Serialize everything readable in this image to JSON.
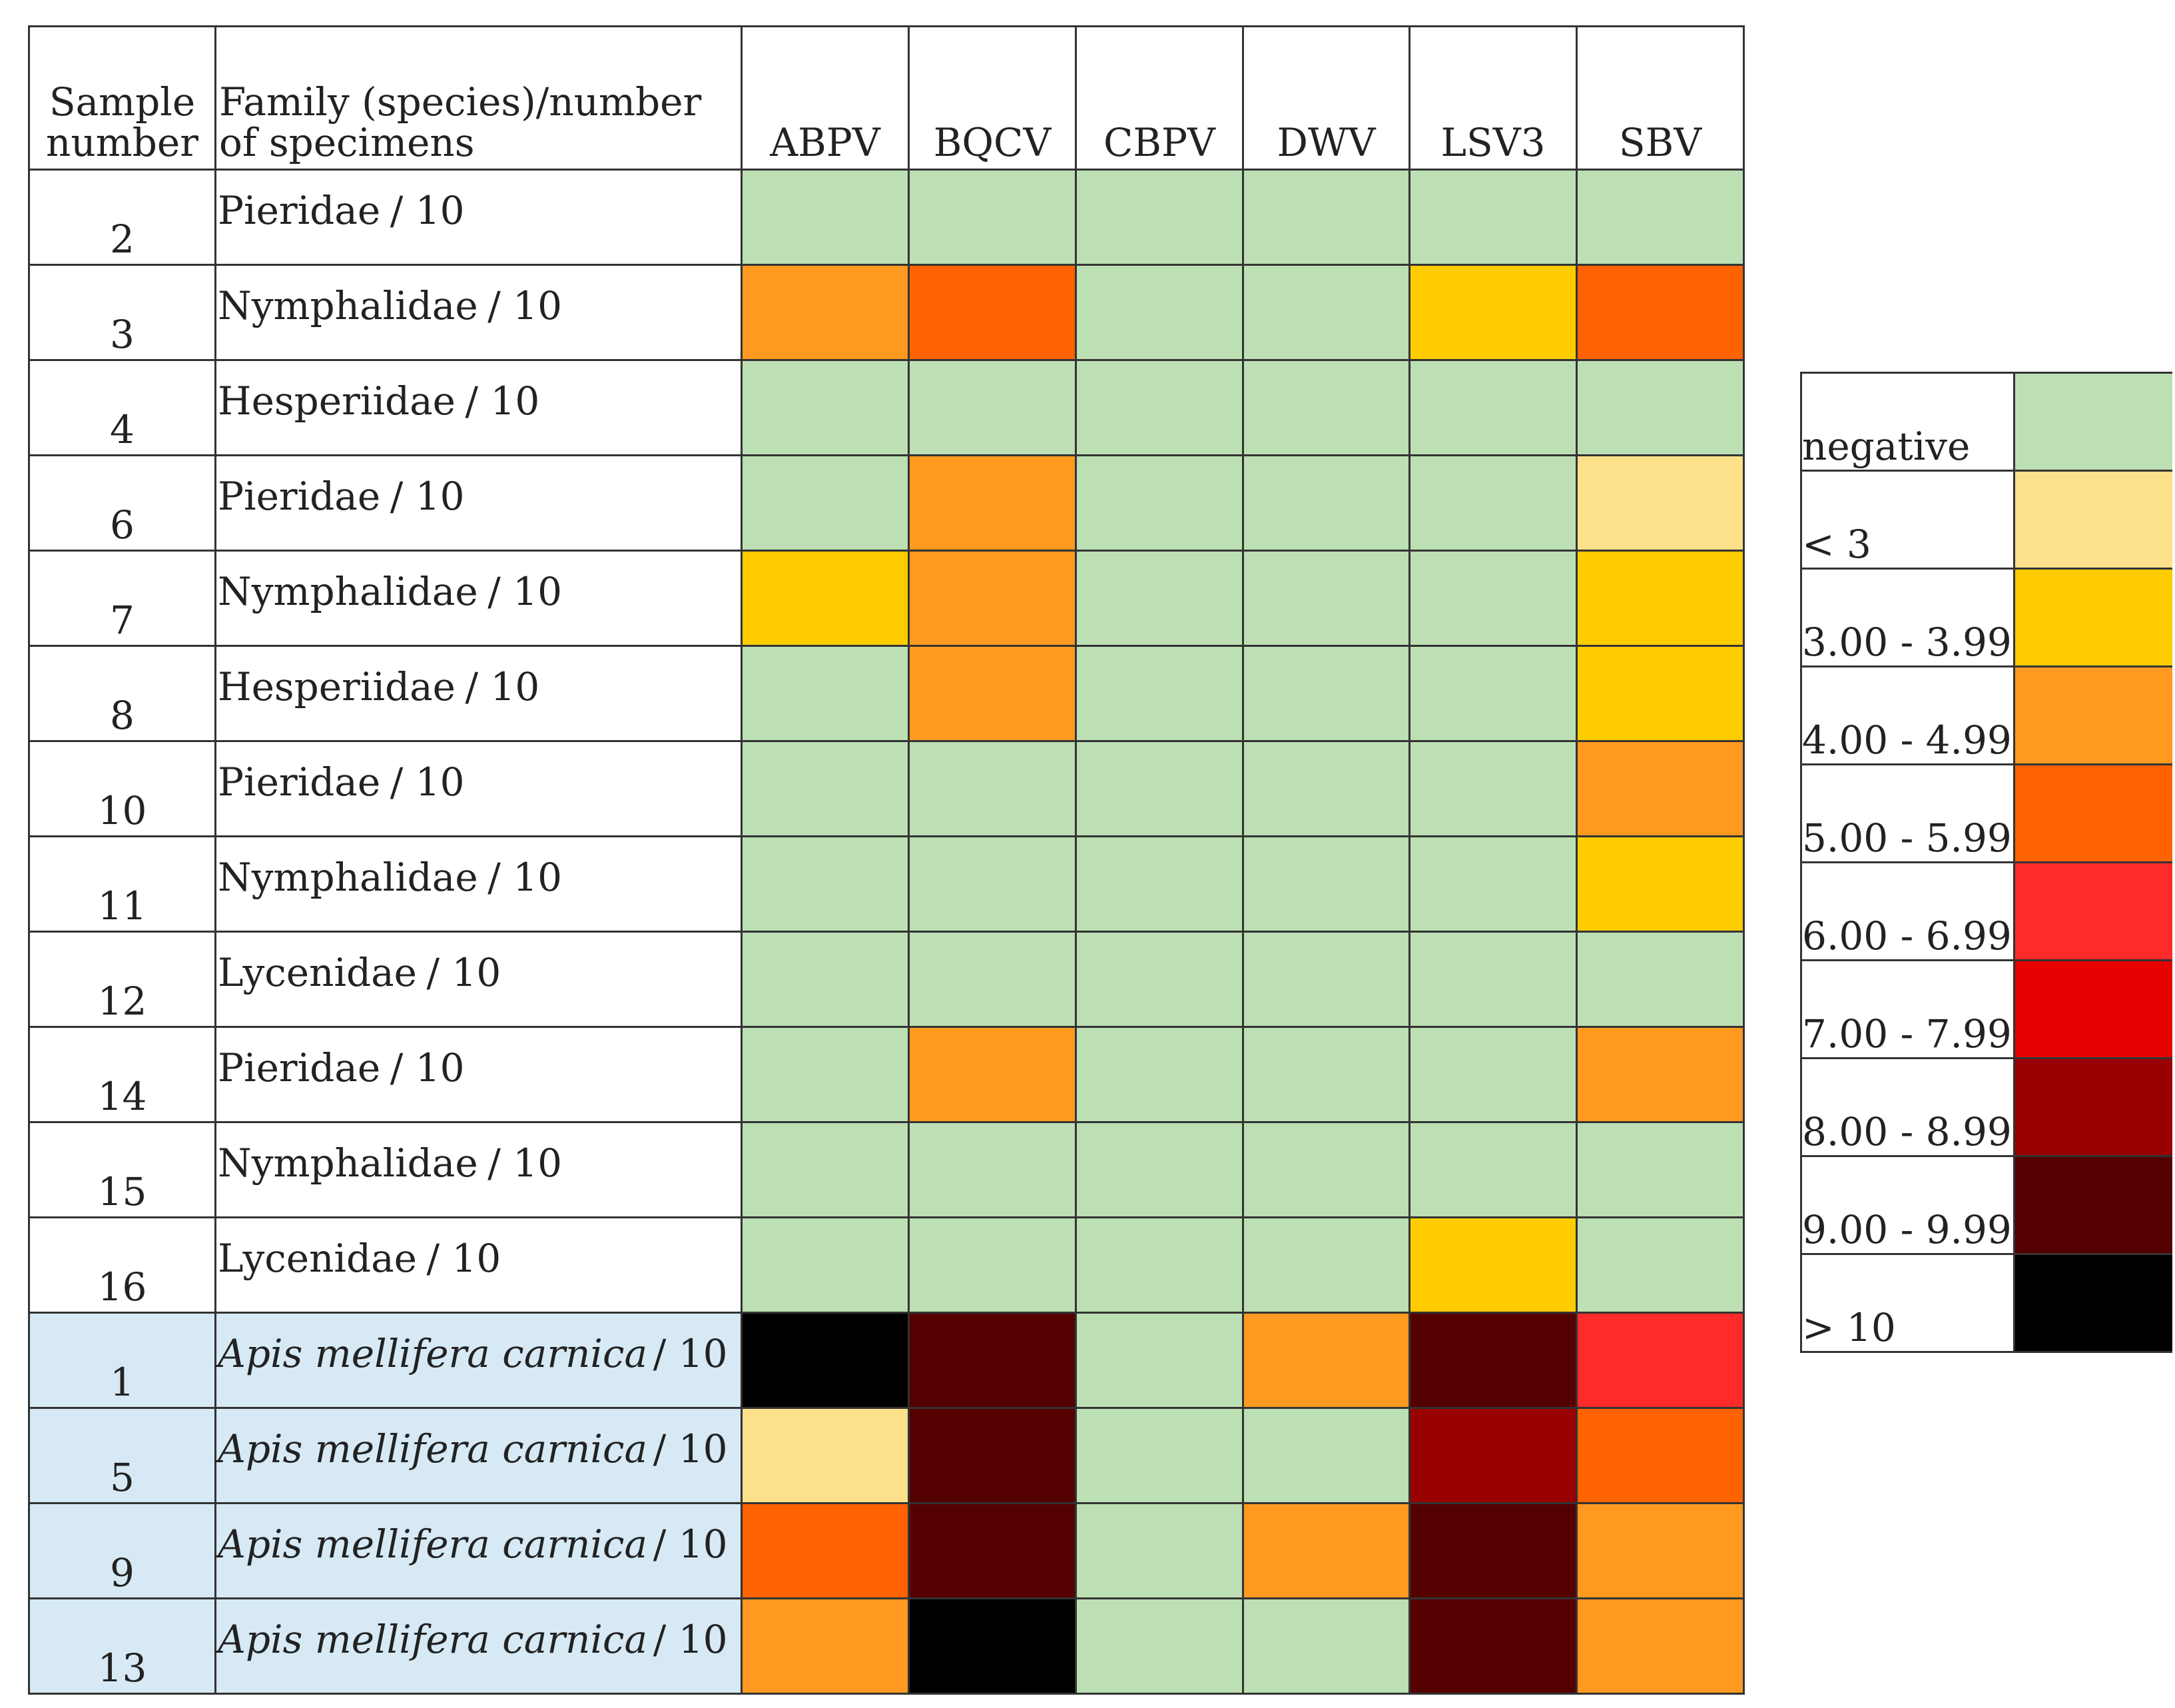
{
  "table": {
    "header": {
      "sample": "Sample number",
      "family": "Family (species)/number of specimens",
      "viruses": [
        "ABPV",
        "BQCV",
        "CBPV",
        "DWV",
        "LSV3",
        "SBV"
      ]
    },
    "rows": [
      {
        "sample": "2",
        "family": "Pieridae",
        "count": "/ 10",
        "highlight": false,
        "levels": [
          0,
          0,
          0,
          0,
          0,
          0
        ]
      },
      {
        "sample": "3",
        "family": "Nymphalidae",
        "count": "/ 10",
        "highlight": false,
        "levels": [
          3,
          4,
          0,
          0,
          2,
          4
        ]
      },
      {
        "sample": "4",
        "family": "Hesperiidae",
        "count": "/ 10",
        "highlight": false,
        "levels": [
          0,
          0,
          0,
          0,
          0,
          0
        ]
      },
      {
        "sample": "6",
        "family": "Pieridae",
        "count": "/ 10",
        "highlight": false,
        "levels": [
          0,
          3,
          0,
          0,
          0,
          1
        ]
      },
      {
        "sample": "7",
        "family": "Nymphalidae",
        "count": "/ 10",
        "highlight": false,
        "levels": [
          2,
          3,
          0,
          0,
          0,
          2
        ]
      },
      {
        "sample": "8",
        "family": "Hesperiidae",
        "count": "/ 10",
        "highlight": false,
        "levels": [
          0,
          3,
          0,
          0,
          0,
          2
        ]
      },
      {
        "sample": "10",
        "family": "Pieridae",
        "count": "/ 10",
        "highlight": false,
        "levels": [
          0,
          0,
          0,
          0,
          0,
          3
        ]
      },
      {
        "sample": "11",
        "family": "Nymphalidae",
        "count": "/ 10",
        "highlight": false,
        "levels": [
          0,
          0,
          0,
          0,
          0,
          2
        ]
      },
      {
        "sample": "12",
        "family": "Lycenidae",
        "count": "/ 10",
        "highlight": false,
        "levels": [
          0,
          0,
          0,
          0,
          0,
          0
        ]
      },
      {
        "sample": "14",
        "family": "Pieridae",
        "count": "/ 10",
        "highlight": false,
        "levels": [
          0,
          3,
          0,
          0,
          0,
          3
        ]
      },
      {
        "sample": "15",
        "family": "Nymphalidae",
        "count": "/ 10",
        "highlight": false,
        "levels": [
          0,
          0,
          0,
          0,
          0,
          0
        ]
      },
      {
        "sample": "16",
        "family": "Lycenidae",
        "count": "/ 10",
        "highlight": false,
        "levels": [
          0,
          0,
          0,
          0,
          2,
          0
        ]
      },
      {
        "sample": "1",
        "family": "Apis mellifera carnica",
        "count": "/ 10",
        "highlight": true,
        "levels": [
          9,
          8,
          0,
          3,
          8,
          5
        ]
      },
      {
        "sample": "5",
        "family": "Apis mellifera carnica",
        "count": "/ 10",
        "highlight": true,
        "levels": [
          1,
          8,
          0,
          0,
          7,
          4
        ]
      },
      {
        "sample": "9",
        "family": "Apis mellifera carnica",
        "count": "/ 10",
        "highlight": true,
        "levels": [
          4,
          8,
          0,
          3,
          8,
          3
        ]
      },
      {
        "sample": "13",
        "family": "Apis mellifera carnica",
        "count": "/ 10",
        "highlight": true,
        "levels": [
          3,
          9,
          0,
          0,
          8,
          3
        ]
      }
    ]
  },
  "legend": [
    {
      "label": "negative",
      "color": "#bddfb4"
    },
    {
      "label": "< 3",
      "color": "#fde08a"
    },
    {
      "label": "3.00 - 3.99",
      "color": "#ffcc00"
    },
    {
      "label": "4.00 - 4.99",
      "color": "#ff991f"
    },
    {
      "label": "5.00 - 5.99",
      "color": "#ff6200"
    },
    {
      "label": "6.00 - 6.99",
      "color": "#ff2a2a"
    },
    {
      "label": "7.00 - 7.99",
      "color": "#e60000"
    },
    {
      "label": "8.00 - 8.99",
      "color": "#990000"
    },
    {
      "label": "9.00 - 9.99",
      "color": "#550000"
    },
    {
      "label": "> 10",
      "color": "#000000"
    }
  ]
}
